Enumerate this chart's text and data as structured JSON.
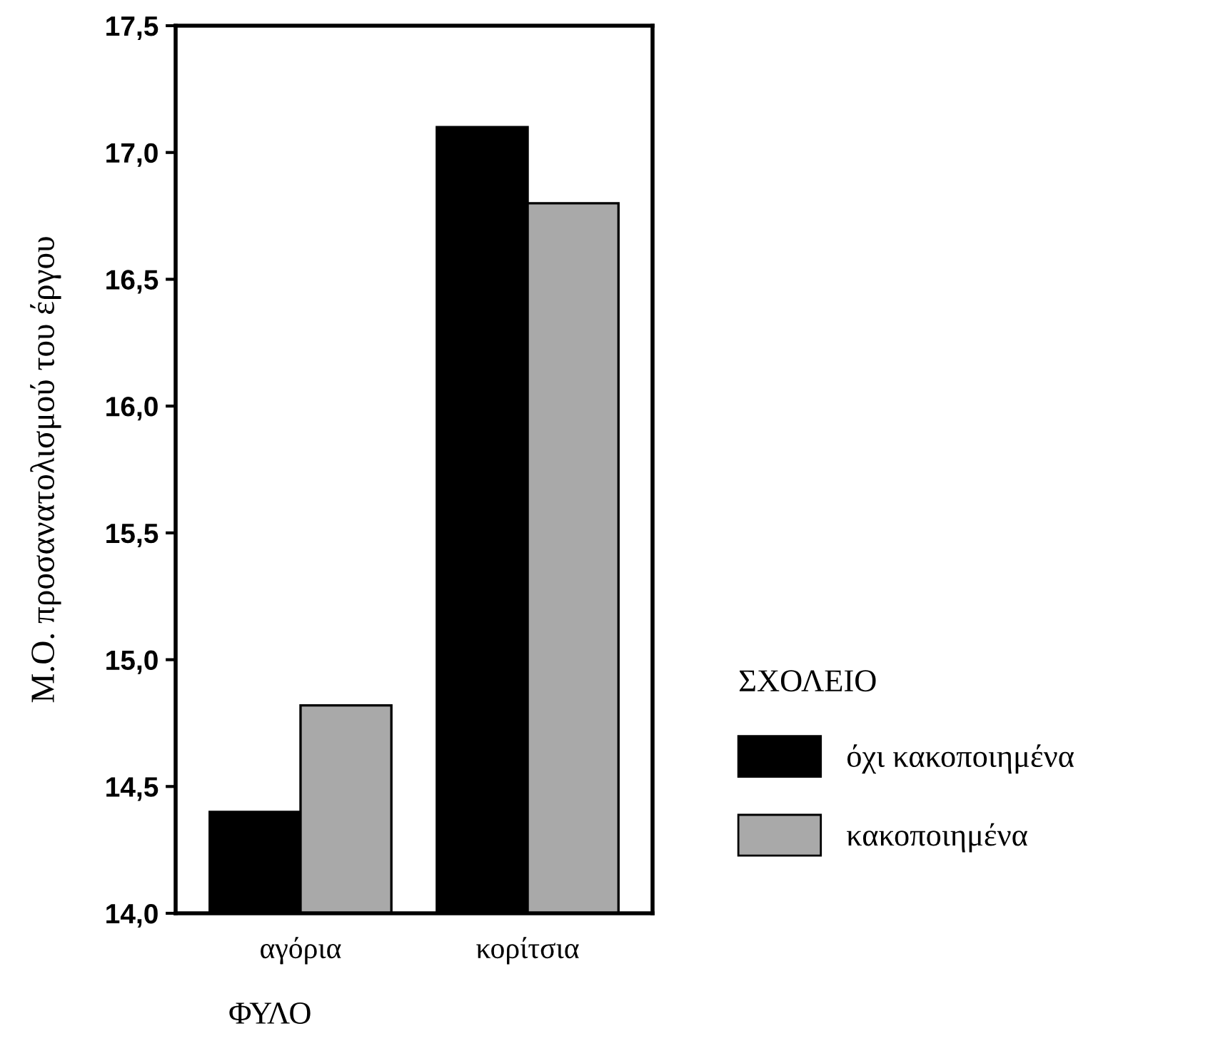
{
  "chart_data": {
    "type": "bar",
    "xlabel": "ΦΥΛΟ",
    "ylabel": "Μ.Ο. προσανατολισμού του έργου",
    "legend_title": "ΣΧΟΛΕΙΟ",
    "categories": [
      "αγόρια",
      "κορίτσια"
    ],
    "series": [
      {
        "name": "όχι κακοποιημένα",
        "color": "#000000",
        "values": [
          14.4,
          17.1
        ]
      },
      {
        "name": "κακοποιημένα",
        "color": "#a9a9a9",
        "values": [
          14.82,
          16.8
        ]
      }
    ],
    "ylim": [
      14.0,
      17.5
    ],
    "yticks": [
      {
        "value": 14.0,
        "label": "14,0"
      },
      {
        "value": 14.5,
        "label": "14,5"
      },
      {
        "value": 15.0,
        "label": "15,0"
      },
      {
        "value": 15.5,
        "label": "15,5"
      },
      {
        "value": 16.0,
        "label": "16,0"
      },
      {
        "value": 16.5,
        "label": "16,5"
      },
      {
        "value": 17.0,
        "label": "17,0"
      },
      {
        "value": 17.5,
        "label": "17,5"
      }
    ],
    "grid": false,
    "legend": "right"
  }
}
